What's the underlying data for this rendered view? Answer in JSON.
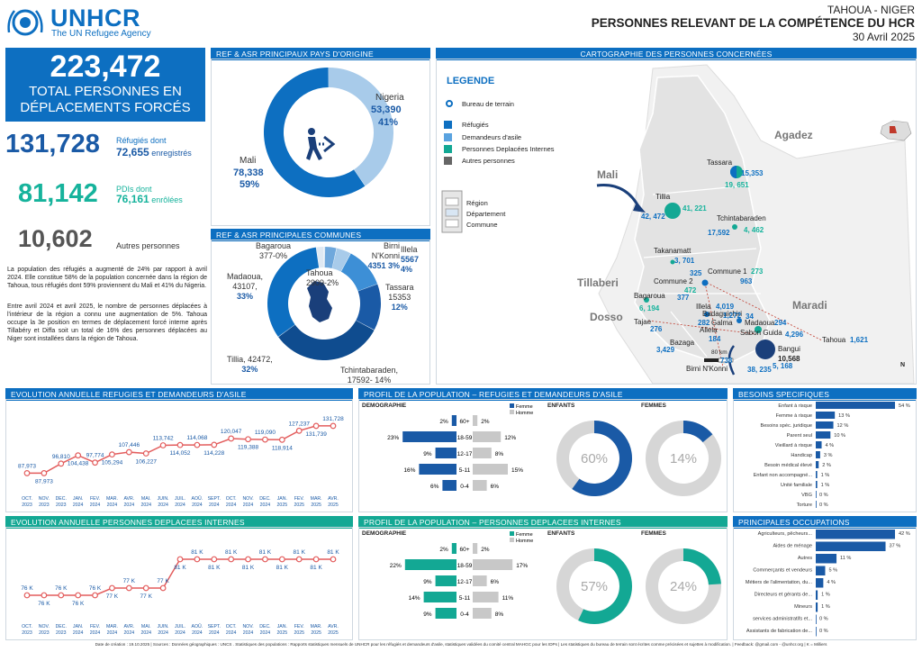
{
  "header": {
    "logo_text": "UNHCR",
    "logo_sub": "The UN Refugee Agency",
    "region": "TAHOUA - NIGER",
    "title": "PERSONNES RELEVANT DE LA COMPÉTENCE DU HCR",
    "date": "30 Avril 2025",
    "colors": {
      "accent": "#0d6fc1",
      "teal": "#13a894",
      "grey": "#555555"
    }
  },
  "totals": {
    "total_value": "223,472",
    "total_label1": "TOTAL PERSONNES EN",
    "total_label2": "DÉPLACEMENTS FORCÉS",
    "refugees_value": "131,728",
    "refugees_label": "Réfugiés dont",
    "refugees_sub_value": "72,655",
    "refugees_sub_label": "enregistrés",
    "pdi_value": "81,142",
    "pdi_label": "PDIs dont",
    "pdi_sub_value": "76,161",
    "pdi_sub_label": "enrôlées",
    "others_value": "10,602",
    "others_label": "Autres personnes",
    "text1": "La population des réfugiés a augmenté de 24% par rapport à avril 2024. Elle constitue 58% de la population concernée dans la région de Tahoua, tous réfugiés dont 59% proviennent du Mali et 41% du Nigeria.",
    "text2": "Entre avril 2024 et avril 2025, le nombre de personnes déplacées à l'intérieur de la région a connu une augmentation de 5%. Tahoua occupe la 3e position en termes de déplacement forcé interne après Tillabéry et Diffa soit un total de 16% des personnes déplacées au Niger sont installées dans la région de Tahoua."
  },
  "origin": {
    "title": "REF & ASR PRINCIPAUX PAYS D'ORIGINE",
    "mali_name": "Mali",
    "mali_value": "78,338",
    "mali_pct": "59%",
    "nigeria_name": "Nigeria",
    "nigeria_value": "53,390",
    "nigeria_pct": "41%",
    "chart_data": {
      "type": "pie",
      "categories": [
        "Mali",
        "Nigeria"
      ],
      "values": [
        78338,
        53390
      ]
    }
  },
  "communes": {
    "title": "REF & ASR PRINCIPALES COMMUNES",
    "labels": [
      {
        "text": "Bagaroua",
        "val": "377-0%"
      },
      {
        "text": "Birni N'Konni",
        "val": "4351 3%"
      },
      {
        "text": "Illela",
        "val": "5567 4%"
      },
      {
        "text": "Tahoua",
        "val": "2909-2%"
      },
      {
        "text": "Madaoua,",
        "val": "43107,",
        "pct": "33%"
      },
      {
        "text": "Tassara",
        "val": "15353",
        "pct": "12%"
      },
      {
        "text": "Tillia, 42472,",
        "val": "32%"
      },
      {
        "text": "Tchintabaraden,",
        "val": "17592- 14%"
      }
    ],
    "chart_data": {
      "type": "pie",
      "categories": [
        "Bagaroua",
        "Birni N'Konni",
        "Illela",
        "Tassara",
        "Tchintabaraden",
        "Tillia",
        "Madaoua",
        "Tahoua"
      ],
      "values": [
        377,
        4351,
        5567,
        15353,
        17592,
        42472,
        43107,
        2909
      ]
    }
  },
  "map": {
    "title": "CARTOGRAPHIE DES PERSONNES CONCERNÉES",
    "legend_title": "LEGENDE",
    "legend_office": "Bureau de terrain",
    "legend_items": [
      "Réfugiés",
      "Demandeurs d'asile",
      "Personnes Deplacées Internes",
      "Autres personnes"
    ],
    "legend_admin": [
      "Région",
      "Département",
      "Commune"
    ],
    "regions": [
      "Agadez",
      "Mali",
      "Tillaberi",
      "Dosso",
      "Maradi"
    ],
    "places": [
      {
        "name": "Tassara",
        "a": "15,353",
        "b": "19, 651"
      },
      {
        "name": "Tillia",
        "a": "42, 472",
        "b": "41, 221"
      },
      {
        "name": "Tchintabaraden",
        "a": "17,592",
        "b": "4, 462"
      },
      {
        "name": "Takanamatt",
        "a": "3, 701"
      },
      {
        "name": "Commune 1",
        "a": "325",
        "b": "273",
        "c": "963"
      },
      {
        "name": "Commune 2",
        "a": "472"
      },
      {
        "name": "Bagaroua",
        "a": "377",
        "b": "6, 194"
      },
      {
        "name": "Illela",
        "a": "4,019"
      },
      {
        "name": "Badaguichiri",
        "a": "1,272"
      },
      {
        "name": "Galma",
        "a": "282"
      },
      {
        "name": "Madaoua",
        "a": "34",
        "b": "294"
      },
      {
        "name": "Sabon Guida",
        "a": "4,296"
      },
      {
        "name": "Tajae",
        "a": "276"
      },
      {
        "name": "Allela",
        "a": "184"
      },
      {
        "name": "Bazaga",
        "a": "3,429"
      },
      {
        "name": "Bangui",
        "a": "10,568",
        "b": "5, 168"
      },
      {
        "name": "Birni N'Konni",
        "a": "738",
        "b": "38, 235"
      },
      {
        "name": "Tahoua",
        "a": "1,621"
      }
    ],
    "scale": "80 km",
    "north": "N"
  },
  "evol_ref": {
    "title": "EVOLUTION ANNUELLE REFUGIES ET DEMANDEURS D'ASILE",
    "chart_data": {
      "type": "line",
      "categories": [
        "OCT. 2023",
        "NOV. 2023",
        "DEC. 2023",
        "JAN. 2024",
        "FEV. 2024",
        "MAR. 2024",
        "AVR. 2024",
        "MAI. 2024",
        "JUIN. 2024",
        "JUIL. 2024",
        "AOÛ. 2024",
        "SEPT. 2024",
        "OCT. 2024",
        "NOV. 2024",
        "DEC. 2024",
        "JAN. 2025",
        "FEV. 2025",
        "MAR. 2025",
        "AVR. 2025"
      ],
      "values": [
        87973,
        87973,
        96810,
        104438,
        97774,
        105294,
        107446,
        106227,
        113742,
        114052,
        114068,
        114228,
        120047,
        119388,
        119090,
        118914,
        127237,
        131739,
        131728
      ],
      "labels": [
        "87,973",
        "87,973",
        "96,810",
        "104,438",
        "97,774",
        "105,294",
        "107,446",
        "106,227",
        "113,742",
        "114,052",
        "114,068",
        "114,228",
        "120,047",
        "119,388",
        "119,090",
        "118,914",
        "127,237",
        "131,739",
        "131,728"
      ]
    }
  },
  "evol_pdi": {
    "title": "EVOLUTION ANNUELLE PERSONNES DEPLACEES INTERNES",
    "chart_data": {
      "type": "line",
      "categories": [
        "OCT. 2023",
        "NOV. 2023",
        "DEC. 2023",
        "JAN. 2024",
        "FEV. 2024",
        "MAR. 2024",
        "AVR. 2024",
        "MAI. 2024",
        "JUIN. 2024",
        "JUIL. 2024",
        "AOÛ. 2024",
        "SEPT. 2024",
        "OCT. 2024",
        "NOV. 2024",
        "DEC. 2024",
        "JAN. 2025",
        "FEV. 2025",
        "MAR. 2025",
        "AVR. 2025"
      ],
      "values": [
        76,
        76,
        76,
        76,
        76,
        77,
        77,
        77,
        77,
        81,
        81,
        81,
        81,
        81,
        81,
        81,
        81,
        81,
        81
      ],
      "labels": [
        "76 K",
        "76 K",
        "76 K",
        "76 K",
        "76 K",
        "77 K",
        "77 K",
        "77 K",
        "77 K",
        "81 K",
        "81 K",
        "81 K",
        "81 K",
        "81 K",
        "81 K",
        "81 K",
        "81 K",
        "81 K",
        "81 K"
      ]
    }
  },
  "profile_ref": {
    "title": "PROFIL DE LA POPULATION – REFUGIES ET DEMANDEURS D'ASILE",
    "demo": "DEMOGRAPHIE",
    "legend": [
      "Femme",
      "Homme"
    ],
    "enfants": "ENFANTS",
    "femmes": "FEMMES",
    "enfants_pct": "60%",
    "femmes_pct": "14%",
    "chart_data": {
      "type": "bar",
      "categories": [
        "60+",
        "18-59",
        "12-17",
        "5-11",
        "0-4"
      ],
      "series": [
        {
          "name": "Femme",
          "values": [
            2,
            23,
            9,
            16,
            6
          ]
        },
        {
          "name": "Homme",
          "values": [
            2,
            12,
            8,
            15,
            6
          ]
        }
      ],
      "donuts": [
        60,
        14
      ]
    }
  },
  "profile_pdi": {
    "title": "PROFIL DE LA POPULATION – PERSONNES DEPLACEES INTERNES",
    "demo": "DEMOGRAPHIE",
    "legend": [
      "Femme",
      "Homme"
    ],
    "enfants": "ENFANTS",
    "femmes": "FEMMES",
    "enfants_pct": "57%",
    "femmes_pct": "24%",
    "chart_data": {
      "type": "bar",
      "categories": [
        "60+",
        "18-59",
        "12-17",
        "5-11",
        "0-4"
      ],
      "series": [
        {
          "name": "Femme",
          "values": [
            2,
            22,
            9,
            14,
            9
          ]
        },
        {
          "name": "Homme",
          "values": [
            2,
            17,
            6,
            11,
            8
          ]
        }
      ],
      "donuts": [
        57,
        24
      ]
    }
  },
  "besoins": {
    "title": "BESOINS SPECIFIQUES",
    "chart_data": {
      "type": "bar",
      "categories": [
        "Enfant à risque",
        "Femme à risque",
        "Besoins spéc. juridique",
        "Parent seul",
        "Vieillard à risque",
        "Handicap",
        "Besoin médical élevé",
        "Enfant non accompagné...",
        "Unité familiale",
        "VBG",
        "Torture"
      ],
      "values": [
        54,
        13,
        12,
        10,
        4,
        3,
        2,
        1,
        1,
        0,
        0
      ],
      "labels": [
        "54 %",
        "13 %",
        "12 %",
        "10 %",
        "4 %",
        "3 %",
        "2 %",
        "1 %",
        "1 %",
        "0 %",
        "0 %"
      ]
    }
  },
  "occupations": {
    "title": "PRINCIPALES OCCUPATIONS",
    "chart_data": {
      "type": "bar",
      "categories": [
        "Agriculteurs, pêcheurs...",
        "Aides de ménage",
        "Autres",
        "Commerçants et vendeurs",
        "Métiers de l'alimentation, du...",
        "Directeurs et gérants de...",
        "Mineurs",
        "services administratifs et...",
        "Assistants de fabrication de..."
      ],
      "values": [
        42,
        37,
        11,
        5,
        4,
        1,
        1,
        0,
        0
      ],
      "labels": [
        "42 %",
        "37 %",
        "11 %",
        "5 %",
        "4 %",
        "1 %",
        "1 %",
        "0 %",
        "0 %"
      ]
    }
  },
  "footer": {
    "text": "Date de création : 19.10.2025 | Sources : Données géographiques : UNCS . Statistiques des populations : Rapports statistiques mensuels de UNHCR pour les réfugiés et demandeurs d'asile, statistiques validées du comité central MAHGC pour les IDPs | Les statistiques du bureau de terrain sont écrites comme précisées et sujettes à modification. | Feedback: @gmail.com - @unhcr.org | K = Milliers"
  }
}
